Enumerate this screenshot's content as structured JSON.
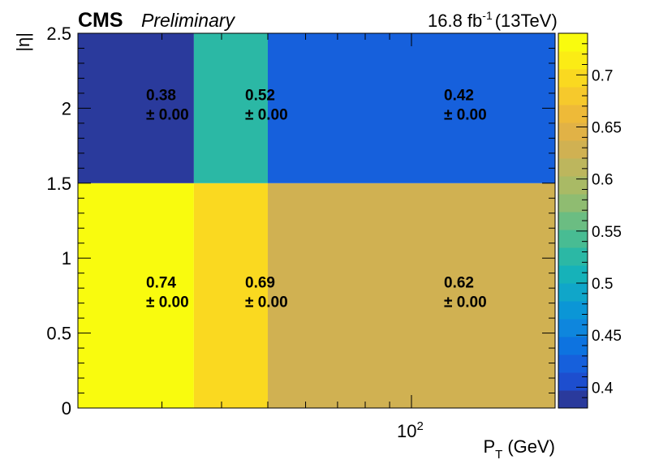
{
  "header": {
    "experiment": "CMS",
    "status": "Preliminary",
    "lumi": "16.8 fb",
    "lumi_exp": "-1",
    "energy": "(13TeV)"
  },
  "chart_data": {
    "type": "heatmap",
    "xlabel": "P",
    "xlabel_sub": "T",
    "xlabel_unit": "(GeV)",
    "ylabel": "|η|",
    "x_scale": "log",
    "x_edges": [
      20,
      35,
      50,
      200
    ],
    "y_edges": [
      0,
      1.5,
      2.5
    ],
    "xlim": [
      20,
      200
    ],
    "ylim": [
      0,
      2.5
    ],
    "x_tick_labels": [
      {
        "base": "10",
        "exp": "2",
        "value": 100
      }
    ],
    "y_tick_labels": [
      "0",
      "0.5",
      "1",
      "1.5",
      "2",
      "2.5"
    ],
    "y_tick_values": [
      0,
      0.5,
      1,
      1.5,
      2,
      2.5
    ],
    "cells": [
      {
        "row": 0,
        "col": 0,
        "value": 0.74,
        "error": "± 0.00",
        "label": "0.74"
      },
      {
        "row": 0,
        "col": 1,
        "value": 0.69,
        "error": "± 0.00",
        "label": "0.69"
      },
      {
        "row": 0,
        "col": 2,
        "value": 0.62,
        "error": "± 0.00",
        "label": "0.62"
      },
      {
        "row": 1,
        "col": 0,
        "value": 0.38,
        "error": "± 0.00",
        "label": "0.38"
      },
      {
        "row": 1,
        "col": 1,
        "value": 0.52,
        "error": "± 0.00",
        "label": "0.52"
      },
      {
        "row": 1,
        "col": 2,
        "value": 0.42,
        "error": "± 0.00",
        "label": "0.42"
      }
    ],
    "zlim": [
      0.38,
      0.74
    ],
    "colorbar_labels": [
      "0.4",
      "0.45",
      "0.5",
      "0.55",
      "0.6",
      "0.65",
      "0.7"
    ],
    "colorbar_values": [
      0.4,
      0.45,
      0.5,
      0.55,
      0.6,
      0.65,
      0.7
    ],
    "palette": [
      "#2a3a9c",
      "#1d4ecf",
      "#1660dc",
      "#0d73e0",
      "#0e86dd",
      "#0b96d6",
      "#10a6c9",
      "#16b2b9",
      "#2bb8a5",
      "#48bc93",
      "#6bbd82",
      "#8fbc71",
      "#a9ba65",
      "#bdb65d",
      "#d0b152",
      "#e1b246",
      "#eeba38",
      "#f6c92c",
      "#fad920",
      "#fbec15",
      "#f9fb0e"
    ]
  }
}
